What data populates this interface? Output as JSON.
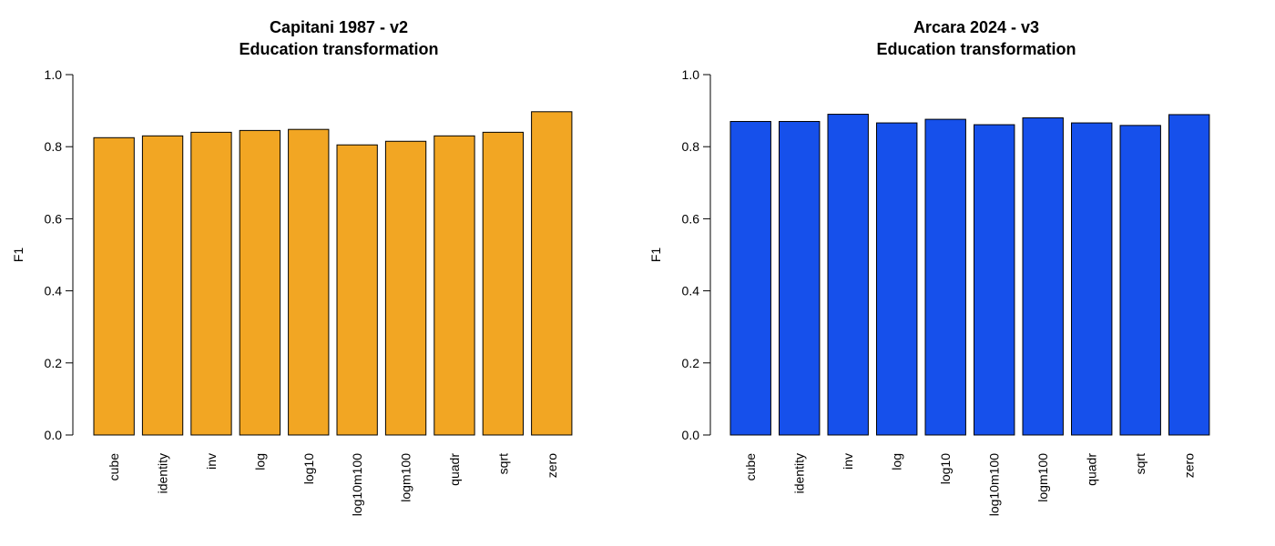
{
  "chart_data": [
    {
      "type": "bar",
      "title": "Capitani 1987 - v2",
      "subtitle": "Education transformation",
      "xlabel": "",
      "ylabel": "F1",
      "ylim": [
        0,
        1
      ],
      "yticks": [
        "0.0",
        "0.2",
        "0.4",
        "0.6",
        "0.8",
        "1.0"
      ],
      "categories": [
        "cube",
        "identity",
        "inv",
        "log",
        "log10",
        "log10m100",
        "logm100",
        "quadr",
        "sqrt",
        "zero"
      ],
      "values": [
        0.825,
        0.83,
        0.84,
        0.845,
        0.848,
        0.805,
        0.815,
        0.83,
        0.84,
        0.897
      ],
      "color": "#F2A623",
      "grid": false,
      "legend": "none"
    },
    {
      "type": "bar",
      "title": "Arcara 2024 - v3",
      "subtitle": "Education transformation",
      "xlabel": "",
      "ylabel": "F1",
      "ylim": [
        0,
        1
      ],
      "yticks": [
        "0.0",
        "0.2",
        "0.4",
        "0.6",
        "0.8",
        "1.0"
      ],
      "categories": [
        "cube",
        "identity",
        "inv",
        "log",
        "log10",
        "log10m100",
        "logm100",
        "quadr",
        "sqrt",
        "zero"
      ],
      "values": [
        0.87,
        0.87,
        0.89,
        0.866,
        0.876,
        0.861,
        0.88,
        0.866,
        0.859,
        0.889
      ],
      "color": "#1650EB",
      "grid": false,
      "legend": "none"
    }
  ]
}
